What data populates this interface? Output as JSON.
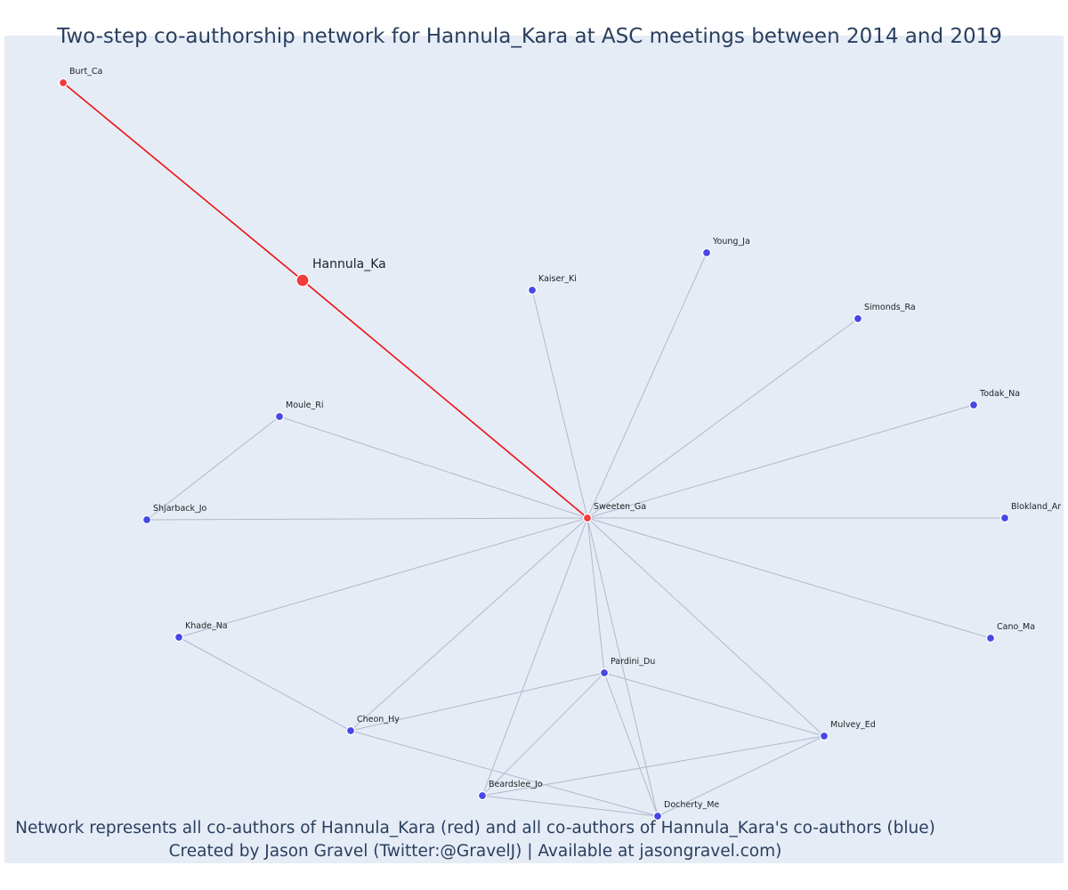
{
  "title": "Two-step co-authorship network for Hannula_Kara at ASC meetings between 2014 and 2019",
  "caption": {
    "line1": "Network represents all co-authors of Hannula_Kara (red) and all co-authors of Hannula_Kara's co-authors (blue)",
    "line2": "Created by Jason Gravel (Twitter:@GravelJ) | Available at jasongravel.com)"
  },
  "colors": {
    "background": "#e5ecf6",
    "focal": "#ef3b3b",
    "first_degree": "#ef3b3b",
    "second_degree": "#4747e6",
    "focal_edge": "#ee1111",
    "edge": "#b3b8c8",
    "text": "#2a3f5f"
  },
  "nodes": [
    {
      "id": "Hannula_Ka",
      "label": "Hannula_Ka",
      "group": "focal"
    },
    {
      "id": "Burt_Ca",
      "label": "Burt_Ca",
      "group": "first"
    },
    {
      "id": "Sweeten_Ga",
      "label": "Sweeten_Ga",
      "group": "first"
    },
    {
      "id": "Young_Ja",
      "label": "Young_Ja",
      "group": "second"
    },
    {
      "id": "Kaiser_Ki",
      "label": "Kaiser_Ki",
      "group": "second"
    },
    {
      "id": "Simonds_Ra",
      "label": "Simonds_Ra",
      "group": "second"
    },
    {
      "id": "Todak_Na",
      "label": "Todak_Na",
      "group": "second"
    },
    {
      "id": "Moule_Ri",
      "label": "Moule_Ri",
      "group": "second"
    },
    {
      "id": "Shjarback_Jo",
      "label": "Shjarback_Jo",
      "group": "second"
    },
    {
      "id": "Blokland_Ar",
      "label": "Blokland_Ar",
      "group": "second"
    },
    {
      "id": "Khade_Na",
      "label": "Khade_Na",
      "group": "second"
    },
    {
      "id": "Cano_Ma",
      "label": "Cano_Ma",
      "group": "second"
    },
    {
      "id": "Pardini_Du",
      "label": "Pardini_Du",
      "group": "second"
    },
    {
      "id": "Cheon_Hy",
      "label": "Cheon_Hy",
      "group": "second"
    },
    {
      "id": "Mulvey_Ed",
      "label": "Mulvey_Ed",
      "group": "second"
    },
    {
      "id": "Beardslee_Jo",
      "label": "Beardslee_Jo",
      "group": "second"
    },
    {
      "id": "Docherty_Me",
      "label": "Docherty_Me",
      "group": "second"
    }
  ],
  "edges": [
    {
      "source": "Hannula_Ka",
      "target": "Burt_Ca",
      "focal": true
    },
    {
      "source": "Hannula_Ka",
      "target": "Sweeten_Ga",
      "focal": true
    },
    {
      "source": "Sweeten_Ga",
      "target": "Kaiser_Ki"
    },
    {
      "source": "Sweeten_Ga",
      "target": "Young_Ja"
    },
    {
      "source": "Sweeten_Ga",
      "target": "Simonds_Ra"
    },
    {
      "source": "Sweeten_Ga",
      "target": "Todak_Na"
    },
    {
      "source": "Sweeten_Ga",
      "target": "Moule_Ri"
    },
    {
      "source": "Sweeten_Ga",
      "target": "Shjarback_Jo"
    },
    {
      "source": "Sweeten_Ga",
      "target": "Blokland_Ar"
    },
    {
      "source": "Sweeten_Ga",
      "target": "Khade_Na"
    },
    {
      "source": "Sweeten_Ga",
      "target": "Cano_Ma"
    },
    {
      "source": "Sweeten_Ga",
      "target": "Pardini_Du"
    },
    {
      "source": "Sweeten_Ga",
      "target": "Cheon_Hy"
    },
    {
      "source": "Sweeten_Ga",
      "target": "Mulvey_Ed"
    },
    {
      "source": "Sweeten_Ga",
      "target": "Beardslee_Jo"
    },
    {
      "source": "Sweeten_Ga",
      "target": "Docherty_Me"
    },
    {
      "source": "Moule_Ri",
      "target": "Shjarback_Jo"
    },
    {
      "source": "Khade_Na",
      "target": "Cheon_Hy"
    },
    {
      "source": "Cheon_Hy",
      "target": "Pardini_Du"
    },
    {
      "source": "Cheon_Hy",
      "target": "Docherty_Me"
    },
    {
      "source": "Pardini_Du",
      "target": "Mulvey_Ed"
    },
    {
      "source": "Pardini_Du",
      "target": "Beardslee_Jo"
    },
    {
      "source": "Pardini_Du",
      "target": "Docherty_Me"
    },
    {
      "source": "Mulvey_Ed",
      "target": "Beardslee_Jo"
    },
    {
      "source": "Mulvey_Ed",
      "target": "Docherty_Me"
    },
    {
      "source": "Beardslee_Jo",
      "target": "Docherty_Me"
    }
  ]
}
